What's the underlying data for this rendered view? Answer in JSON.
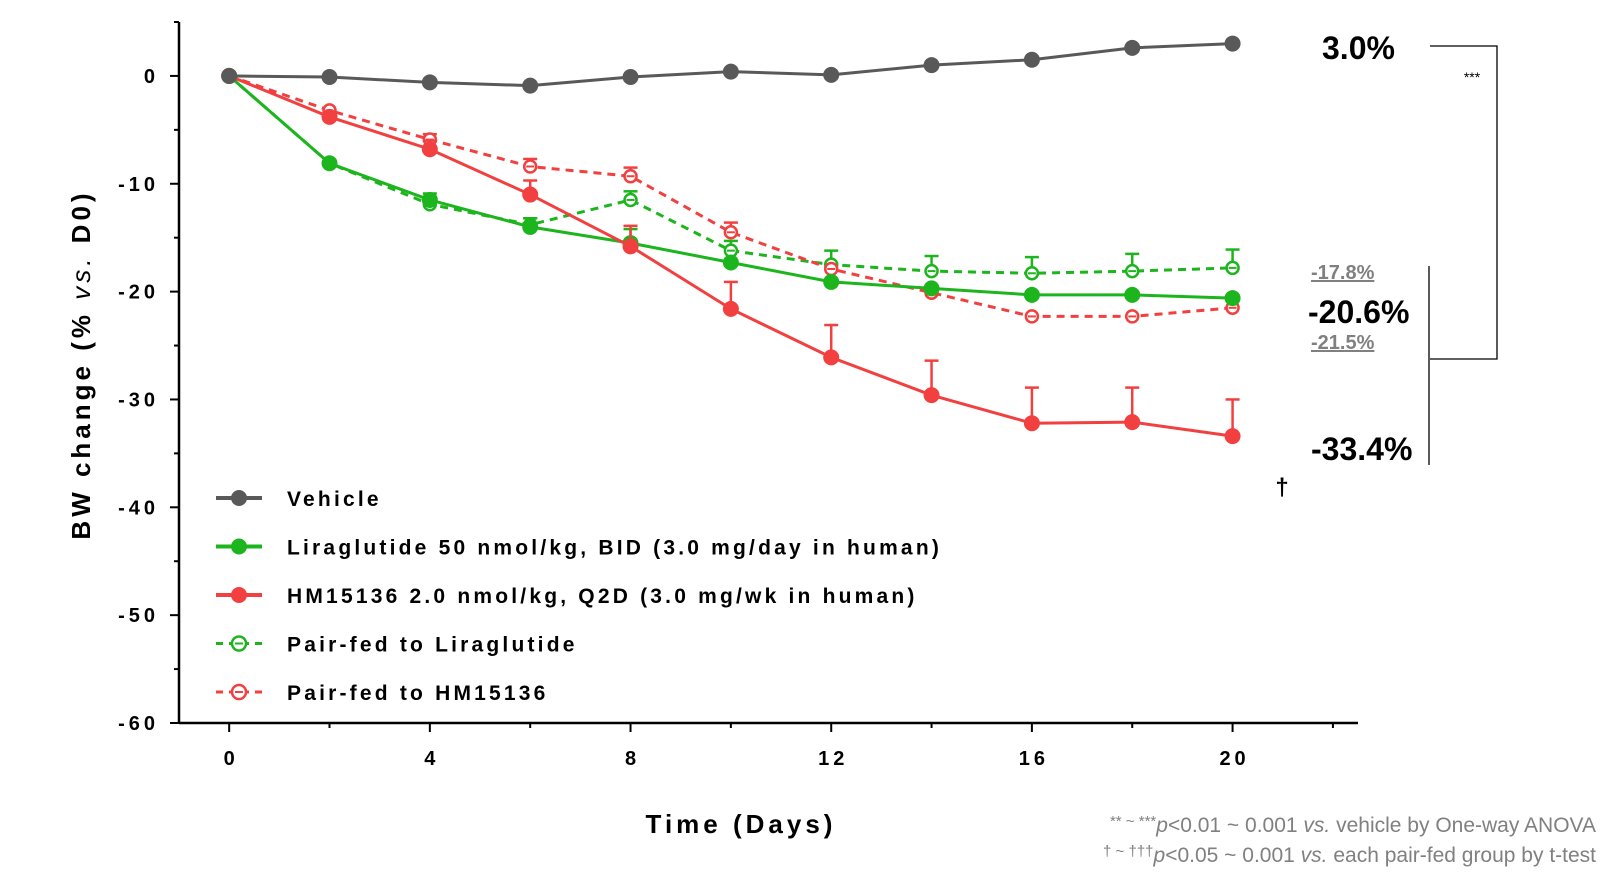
{
  "chart_data": {
    "type": "line",
    "xlabel": "Time (Days)",
    "ylabel": "BW change (% vs. D0)",
    "xlim": [
      -1,
      22.5
    ],
    "ylim": [
      -60,
      5
    ],
    "x_ticks": [
      0,
      4,
      8,
      12,
      16,
      20
    ],
    "y_ticks": [
      0,
      -10,
      -20,
      -30,
      -40,
      -50,
      -60
    ],
    "x": [
      0,
      2,
      4,
      6,
      8,
      10,
      12,
      14,
      16,
      18,
      20
    ],
    "legend_position": "bottom-left",
    "series": [
      {
        "name": "Vehicle",
        "color": "#595959",
        "style": "solid",
        "marker": "filled",
        "values": [
          0,
          -0.1,
          -0.6,
          -0.9,
          -0.1,
          0.4,
          0.1,
          1.0,
          1.5,
          2.6,
          3.0
        ],
        "errors": [
          0,
          0,
          0,
          0,
          0,
          0,
          0,
          0,
          0,
          0,
          0
        ]
      },
      {
        "name": "Liraglutide 50 nmol/kg, BID (3.0 mg/day in human)",
        "color": "#1db51d",
        "style": "solid",
        "marker": "filled",
        "values": [
          0,
          -8.1,
          -11.5,
          -14.0,
          -15.5,
          -17.3,
          -19.1,
          -19.7,
          -20.3,
          -20.3,
          -20.6
        ],
        "errors": [
          0,
          0,
          0.6,
          0.8,
          1.3,
          0,
          0,
          0,
          0,
          0,
          0
        ]
      },
      {
        "name": "HM15136  2.0 nmol/kg, Q2D (3.0 mg/wk in human)",
        "color": "#f24040",
        "style": "solid",
        "marker": "filled",
        "values": [
          0,
          -3.8,
          -6.8,
          -11.0,
          -15.8,
          -21.6,
          -26.1,
          -29.6,
          -32.2,
          -32.1,
          -33.4
        ],
        "errors": [
          0,
          0,
          0.8,
          1.3,
          1.9,
          2.5,
          3.0,
          3.2,
          3.3,
          3.2,
          3.4
        ]
      },
      {
        "name": "Pair-fed to Liraglutide",
        "color": "#1db51d",
        "style": "dashed",
        "marker": "open",
        "values": [
          0,
          -8.1,
          -11.9,
          -13.8,
          -11.5,
          -16.2,
          -17.5,
          -18.1,
          -18.3,
          -18.1,
          -17.8
        ],
        "errors": [
          0,
          0,
          0,
          0.6,
          0.8,
          0.9,
          1.3,
          1.4,
          1.5,
          1.6,
          1.7
        ]
      },
      {
        "name": "Pair-fed to HM15136",
        "color": "#f24040",
        "style": "dashed",
        "marker": "open",
        "values": [
          0,
          -3.2,
          -5.9,
          -8.4,
          -9.3,
          -14.5,
          -17.9,
          -20.1,
          -22.3,
          -22.3,
          -21.5
        ],
        "errors": [
          0,
          0,
          0.5,
          0.7,
          0.8,
          0.9,
          0,
          0,
          0,
          0,
          0
        ]
      }
    ],
    "end_labels": {
      "vehicle": "3.0%",
      "liraglutide": "-20.6%",
      "hm15136": "-33.4%",
      "pairfed_lira": "-17.8%",
      "pairfed_hm": "-21.5%"
    },
    "significance": "***",
    "dagger": "†",
    "footnotes": {
      "line1_prefix": "** ~ ***",
      "line1_p": "p",
      "line1_mid": "<0.01 ~ 0.001 ",
      "line1_vs": "vs.",
      "line1_rest": " vehicle by One-way ANOVA",
      "line2_prefix": "† ~ †††",
      "line2_p": "p",
      "line2_mid": "<0.05 ~ 0.001  ",
      "line2_vs": "vs.",
      "line2_rest": " each pair-fed group by t-test"
    }
  }
}
